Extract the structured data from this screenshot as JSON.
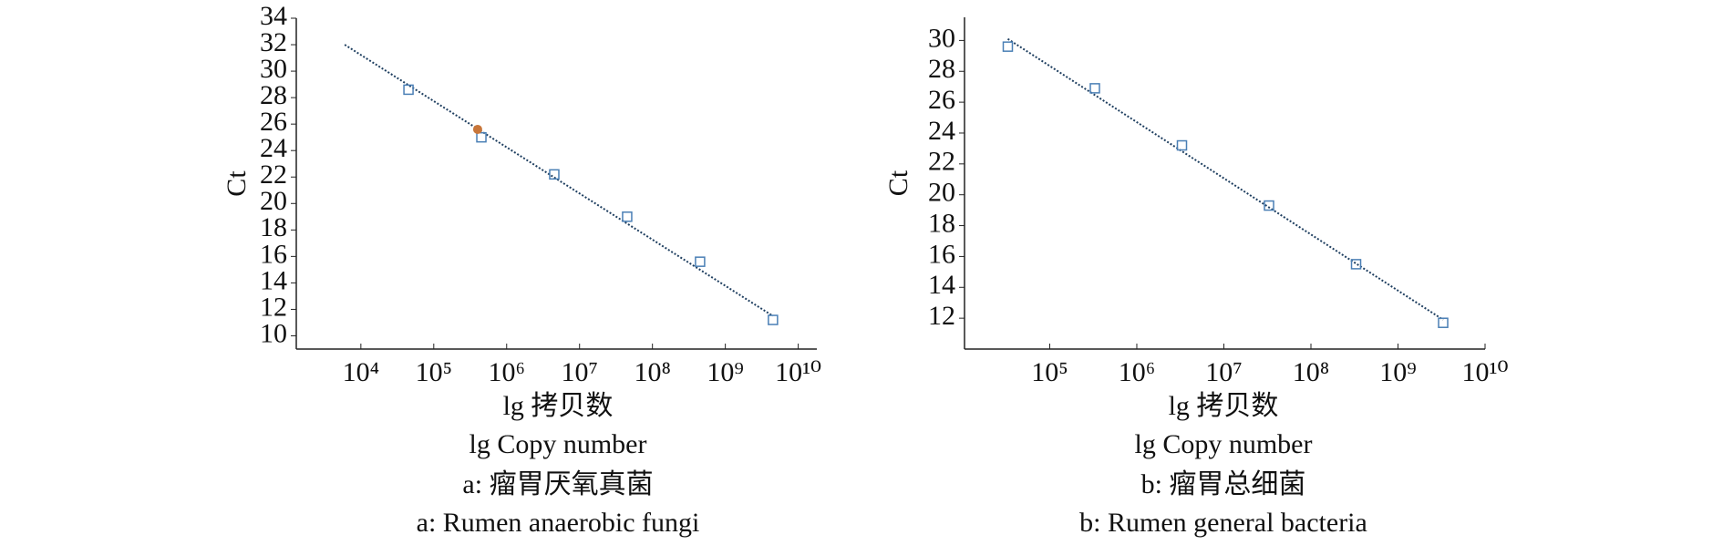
{
  "chart_data": [
    {
      "type": "scatter",
      "log_x": true,
      "ylabel": "Ct",
      "xlabel": "lg 拷贝数",
      "xlabel_en": "lg Copy number",
      "caption": "a: 瘤胃厌氧真菌",
      "caption_en": "a: Rumen anaerobic fungi",
      "xlim": [
        1300,
        18000000000
      ],
      "ylim": [
        9,
        34
      ],
      "xticks": [
        {
          "value": 10000,
          "label": "10⁴"
        },
        {
          "value": 100000,
          "label": "10⁵"
        },
        {
          "value": 1000000,
          "label": "10⁶"
        },
        {
          "value": 10000000,
          "label": "10⁷"
        },
        {
          "value": 100000000,
          "label": "10⁸"
        },
        {
          "value": 1000000000,
          "label": "10⁹"
        },
        {
          "value": 10000000000,
          "label": "10¹⁰"
        }
      ],
      "yticks": [
        10,
        12,
        14,
        16,
        18,
        20,
        22,
        24,
        26,
        28,
        30,
        32,
        34
      ],
      "series": [
        {
          "marker": "line",
          "color": "#1f3f60",
          "x": [
            6000,
            4500000000
          ],
          "values": [
            32,
            11.5
          ]
        },
        {
          "marker": "square",
          "color": "#4a7fb5",
          "x": [
            45000,
            450000,
            4500000,
            45000000,
            450000000,
            4500000000
          ],
          "values": [
            28.6,
            25.0,
            22.2,
            19.0,
            15.6,
            11.2
          ]
        },
        {
          "marker": "circle",
          "color": "#c8763a",
          "x": [
            400000
          ],
          "values": [
            25.6
          ]
        }
      ]
    },
    {
      "type": "scatter",
      "log_x": true,
      "ylabel": "Ct",
      "xlabel": "lg 拷贝数",
      "xlabel_en": "lg Copy number",
      "caption": "b: 瘤胃总细菌",
      "caption_en": "b: Rumen general bacteria",
      "xlim": [
        10500,
        10000000000
      ],
      "ylim": [
        10,
        31.5
      ],
      "xticks": [
        {
          "value": 100000,
          "label": "10⁵"
        },
        {
          "value": 1000000,
          "label": "10⁶"
        },
        {
          "value": 10000000,
          "label": "10⁷"
        },
        {
          "value": 100000000,
          "label": "10⁸"
        },
        {
          "value": 1000000000,
          "label": "10⁹"
        },
        {
          "value": 10000000000,
          "label": "10¹⁰"
        }
      ],
      "yticks": [
        12,
        14,
        16,
        18,
        20,
        22,
        24,
        26,
        28,
        30
      ],
      "series": [
        {
          "marker": "line",
          "color": "#1f3f60",
          "x": [
            33000,
            3300000000
          ],
          "values": [
            30.1,
            11.9
          ]
        },
        {
          "marker": "square",
          "color": "#4a7fb5",
          "x": [
            33000,
            330000,
            3300000,
            33000000,
            330000000,
            3300000000
          ],
          "values": [
            29.6,
            26.9,
            23.2,
            19.3,
            15.5,
            11.7
          ]
        }
      ]
    }
  ]
}
